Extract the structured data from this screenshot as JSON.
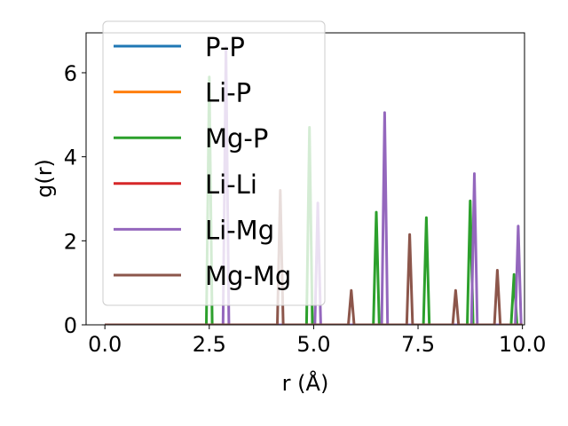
{
  "chart_data": {
    "type": "line",
    "xlabel": "r (Å)",
    "ylabel": "g(r)",
    "xlim": [
      -0.45,
      10.05
    ],
    "ylim": [
      0,
      6.95
    ],
    "xticks": [
      0.0,
      2.5,
      5.0,
      7.5,
      10.0
    ],
    "xtick_labels": [
      "0.0",
      "2.5",
      "5.0",
      "7.5",
      "10.0"
    ],
    "yticks": [
      0,
      2,
      4,
      6
    ],
    "ytick_labels": [
      "0",
      "2",
      "4",
      "6"
    ],
    "grid": false,
    "legend_position": "top-left",
    "series": [
      {
        "name": "P-P",
        "color": "#1f77b4",
        "peaks": []
      },
      {
        "name": "Li-P",
        "color": "#ff7f0e",
        "peaks": []
      },
      {
        "name": "Mg-P",
        "color": "#2ca02c",
        "peaks": [
          [
            2.5,
            5.9
          ],
          [
            4.9,
            4.7
          ],
          [
            6.5,
            2.68
          ],
          [
            7.7,
            2.55
          ],
          [
            8.75,
            2.95
          ],
          [
            9.8,
            1.2
          ]
        ]
      },
      {
        "name": "Li-Li",
        "color": "#d62728",
        "peaks": []
      },
      {
        "name": "Li-Mg",
        "color": "#9467bd",
        "peaks": [
          [
            2.9,
            6.6
          ],
          [
            5.1,
            2.9
          ],
          [
            6.7,
            5.05
          ],
          [
            8.85,
            3.6
          ],
          [
            9.9,
            2.35
          ]
        ]
      },
      {
        "name": "Mg-Mg",
        "color": "#8c564b",
        "peaks": [
          [
            4.2,
            3.2
          ],
          [
            5.9,
            0.82
          ],
          [
            7.3,
            2.15
          ],
          [
            8.4,
            0.82
          ],
          [
            9.4,
            1.3
          ]
        ]
      }
    ]
  }
}
